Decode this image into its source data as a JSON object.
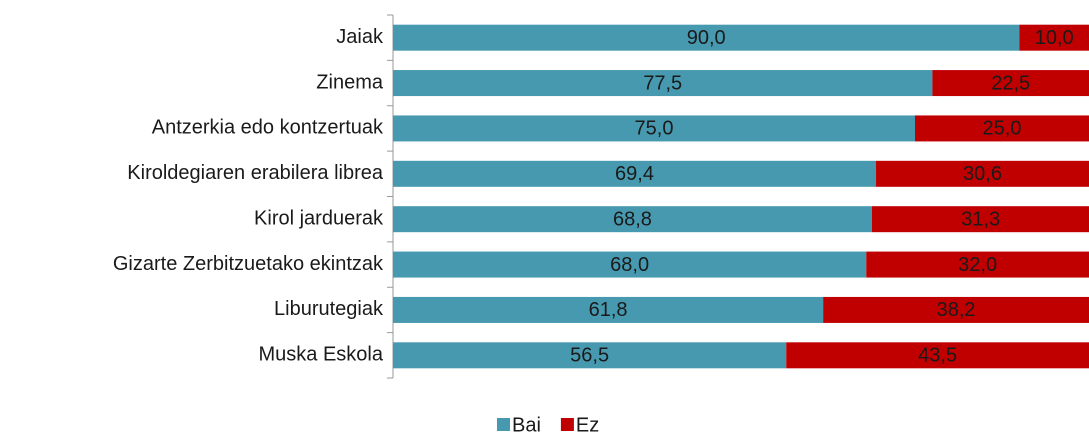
{
  "chart_data": {
    "type": "stacked_bar_horizontal",
    "categories": [
      "Jaiak",
      "Zinema",
      "Antzerkia edo kontzertuak",
      "Kiroldegiaren erabilera librea",
      "Kirol jarduerak",
      "Gizarte Zerbitzuetako ekintzak",
      "Liburutegiak",
      "Muska Eskola"
    ],
    "series": [
      {
        "name": "Bai",
        "color": "#4799b0",
        "values": [
          90,
          77.5,
          75,
          69.4,
          68.8,
          68,
          61.8,
          56.5
        ],
        "value_labels": [
          "90,0",
          "77,5",
          "75,0",
          "69,4",
          "68,8",
          "68,0",
          "61,8",
          "56,5"
        ]
      },
      {
        "name": "Ez",
        "color": "#c00000",
        "values": [
          10,
          22.5,
          25,
          30.6,
          31.3,
          32,
          38.2,
          43.5
        ],
        "value_labels": [
          "10,0",
          "22,5",
          "25,0",
          "30,6",
          "31,3",
          "32,0",
          "38,2",
          "43,5"
        ]
      }
    ],
    "xlim": [
      0,
      100
    ],
    "legend": "bottom"
  }
}
